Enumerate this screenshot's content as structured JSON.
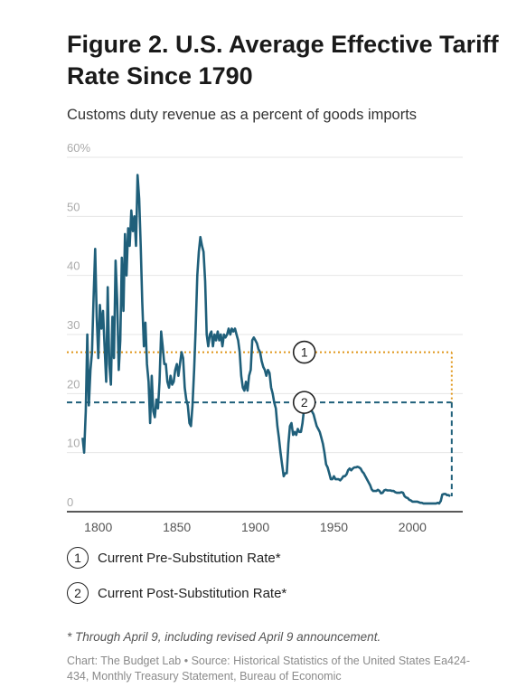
{
  "chart_data": {
    "type": "line",
    "title": "Figure 2. U.S. Average Effective Tariff Rate Since 1790",
    "subtitle": "Customs duty revenue as a percent of goods imports",
    "xlabel": "",
    "ylabel": "",
    "xlim": [
      1780,
      2032
    ],
    "ylim": [
      0,
      60
    ],
    "x_ticks": [
      "1800",
      "1850",
      "1900",
      "1950",
      "2000"
    ],
    "y_ticks": [
      "60%",
      "50",
      "40",
      "30",
      "20",
      "10",
      "0"
    ],
    "grid": true,
    "series": [
      {
        "color": "#1f5f7a",
        "points": [
          [
            1790,
            12.5
          ],
          [
            1791,
            10.0
          ],
          [
            1792,
            17.0
          ],
          [
            1793,
            30.0
          ],
          [
            1794,
            18.0
          ],
          [
            1795,
            24.0
          ],
          [
            1796,
            27.0
          ],
          [
            1797,
            36.0
          ],
          [
            1798,
            44.5
          ],
          [
            1799,
            33.0
          ],
          [
            1800,
            26.0
          ],
          [
            1801,
            35.0
          ],
          [
            1802,
            31.0
          ],
          [
            1803,
            34.0
          ],
          [
            1804,
            28.0
          ],
          [
            1805,
            22.0
          ],
          [
            1806,
            38.0
          ],
          [
            1807,
            25.0
          ],
          [
            1808,
            21.5
          ],
          [
            1809,
            33.0
          ],
          [
            1810,
            26.0
          ],
          [
            1811,
            42.5
          ],
          [
            1812,
            36.0
          ],
          [
            1813,
            24.0
          ],
          [
            1814,
            29.0
          ],
          [
            1815,
            43.0
          ],
          [
            1816,
            34.0
          ],
          [
            1817,
            47.0
          ],
          [
            1818,
            40.0
          ],
          [
            1819,
            48.0
          ],
          [
            1820,
            45.0
          ],
          [
            1821,
            51.0
          ],
          [
            1822,
            47.5
          ],
          [
            1823,
            50.0
          ],
          [
            1824,
            45.0
          ],
          [
            1825,
            57.0
          ],
          [
            1826,
            53.0
          ],
          [
            1827,
            45.0
          ],
          [
            1828,
            35.5
          ],
          [
            1829,
            28.0
          ],
          [
            1830,
            32.0
          ],
          [
            1831,
            25.0
          ],
          [
            1832,
            22.0
          ],
          [
            1833,
            15.0
          ],
          [
            1834,
            23.0
          ],
          [
            1835,
            17.0
          ],
          [
            1836,
            16.0
          ],
          [
            1837,
            19.0
          ],
          [
            1838,
            17.5
          ],
          [
            1839,
            22.0
          ],
          [
            1840,
            30.5
          ],
          [
            1841,
            28.0
          ],
          [
            1842,
            25.0
          ],
          [
            1843,
            25.0
          ],
          [
            1844,
            22.0
          ],
          [
            1845,
            21.0
          ],
          [
            1846,
            23.0
          ],
          [
            1847,
            21.5
          ],
          [
            1848,
            22.0
          ],
          [
            1849,
            24.0
          ],
          [
            1850,
            25.0
          ],
          [
            1851,
            23.0
          ],
          [
            1852,
            25.0
          ],
          [
            1853,
            27.0
          ],
          [
            1854,
            26.0
          ],
          [
            1855,
            21.0
          ],
          [
            1856,
            19.0
          ],
          [
            1857,
            18.0
          ],
          [
            1858,
            15.0
          ],
          [
            1859,
            14.5
          ],
          [
            1860,
            18.0
          ],
          [
            1861,
            24.0
          ],
          [
            1862,
            31.0
          ],
          [
            1863,
            40.0
          ],
          [
            1864,
            44.0
          ],
          [
            1865,
            46.5
          ],
          [
            1866,
            45.0
          ],
          [
            1867,
            44.0
          ],
          [
            1868,
            39.0
          ],
          [
            1869,
            30.0
          ],
          [
            1870,
            28.0
          ],
          [
            1871,
            30.0
          ],
          [
            1872,
            30.5
          ],
          [
            1873,
            28.0
          ],
          [
            1874,
            30.0
          ],
          [
            1875,
            29.0
          ],
          [
            1876,
            30.5
          ],
          [
            1877,
            29.0
          ],
          [
            1878,
            30.0
          ],
          [
            1879,
            28.0
          ],
          [
            1880,
            30.0
          ],
          [
            1881,
            29.5
          ],
          [
            1882,
            30.0
          ],
          [
            1883,
            31.0
          ],
          [
            1884,
            30.0
          ],
          [
            1885,
            31.0
          ],
          [
            1886,
            30.5
          ],
          [
            1887,
            31.0
          ],
          [
            1888,
            30.0
          ],
          [
            1889,
            29.0
          ],
          [
            1890,
            27.0
          ],
          [
            1891,
            23.0
          ],
          [
            1892,
            21.0
          ],
          [
            1893,
            20.5
          ],
          [
            1894,
            22.0
          ],
          [
            1895,
            20.5
          ],
          [
            1896,
            23.0
          ],
          [
            1897,
            24.0
          ],
          [
            1898,
            29.0
          ],
          [
            1899,
            29.5
          ],
          [
            1900,
            29.0
          ],
          [
            1901,
            28.5
          ],
          [
            1902,
            27.5
          ],
          [
            1903,
            27.0
          ],
          [
            1904,
            25.5
          ],
          [
            1905,
            24.5
          ],
          [
            1906,
            24.0
          ],
          [
            1907,
            23.0
          ],
          [
            1908,
            24.0
          ],
          [
            1909,
            23.5
          ],
          [
            1910,
            21.0
          ],
          [
            1911,
            20.0
          ],
          [
            1912,
            18.5
          ],
          [
            1913,
            17.5
          ],
          [
            1914,
            14.5
          ],
          [
            1915,
            12.5
          ],
          [
            1916,
            10.0
          ],
          [
            1917,
            8.0
          ],
          [
            1918,
            6.0
          ],
          [
            1919,
            6.5
          ],
          [
            1920,
            6.5
          ],
          [
            1921,
            11.5
          ],
          [
            1922,
            14.5
          ],
          [
            1923,
            15.0
          ],
          [
            1924,
            13.0
          ],
          [
            1925,
            13.5
          ],
          [
            1926,
            13.0
          ],
          [
            1927,
            14.0
          ],
          [
            1928,
            13.5
          ],
          [
            1929,
            13.5
          ],
          [
            1930,
            15.0
          ],
          [
            1931,
            17.5
          ],
          [
            1932,
            19.5
          ],
          [
            1933,
            20.0
          ],
          [
            1934,
            19.0
          ],
          [
            1935,
            17.5
          ],
          [
            1936,
            17.0
          ],
          [
            1937,
            16.5
          ],
          [
            1938,
            15.5
          ],
          [
            1939,
            14.5
          ],
          [
            1940,
            14.0
          ],
          [
            1941,
            13.5
          ],
          [
            1942,
            12.5
          ],
          [
            1943,
            11.5
          ],
          [
            1944,
            10.0
          ],
          [
            1945,
            8.0
          ],
          [
            1946,
            7.5
          ],
          [
            1947,
            6.5
          ],
          [
            1948,
            5.5
          ],
          [
            1949,
            5.5
          ],
          [
            1950,
            6.0
          ],
          [
            1951,
            5.5
          ],
          [
            1952,
            5.5
          ],
          [
            1953,
            5.5
          ],
          [
            1954,
            5.3
          ],
          [
            1955,
            5.6
          ],
          [
            1956,
            6.0
          ],
          [
            1957,
            6.0
          ],
          [
            1958,
            6.3
          ],
          [
            1959,
            7.0
          ],
          [
            1960,
            7.3
          ],
          [
            1961,
            7.0
          ],
          [
            1962,
            7.3
          ],
          [
            1963,
            7.5
          ],
          [
            1964,
            7.5
          ],
          [
            1965,
            7.6
          ],
          [
            1966,
            7.5
          ],
          [
            1967,
            7.3
          ],
          [
            1968,
            6.8
          ],
          [
            1969,
            6.5
          ],
          [
            1970,
            6.0
          ],
          [
            1971,
            5.5
          ],
          [
            1972,
            5.0
          ],
          [
            1973,
            4.5
          ],
          [
            1974,
            3.8
          ],
          [
            1975,
            3.5
          ],
          [
            1976,
            3.5
          ],
          [
            1977,
            3.5
          ],
          [
            1978,
            3.7
          ],
          [
            1979,
            3.5
          ],
          [
            1980,
            3.1
          ],
          [
            1981,
            3.2
          ],
          [
            1982,
            3.6
          ],
          [
            1983,
            3.7
          ],
          [
            1984,
            3.6
          ],
          [
            1985,
            3.6
          ],
          [
            1986,
            3.6
          ],
          [
            1987,
            3.5
          ],
          [
            1988,
            3.5
          ],
          [
            1989,
            3.3
          ],
          [
            1990,
            3.2
          ],
          [
            1991,
            3.2
          ],
          [
            1992,
            3.2
          ],
          [
            1993,
            3.3
          ],
          [
            1994,
            3.2
          ],
          [
            1995,
            2.6
          ],
          [
            1996,
            2.4
          ],
          [
            1997,
            2.3
          ],
          [
            1998,
            2.0
          ],
          [
            1999,
            1.9
          ],
          [
            2000,
            1.7
          ],
          [
            2001,
            1.7
          ],
          [
            2002,
            1.7
          ],
          [
            2003,
            1.7
          ],
          [
            2004,
            1.6
          ],
          [
            2005,
            1.5
          ],
          [
            2006,
            1.5
          ],
          [
            2007,
            1.4
          ],
          [
            2008,
            1.4
          ],
          [
            2009,
            1.4
          ],
          [
            2010,
            1.4
          ],
          [
            2011,
            1.4
          ],
          [
            2012,
            1.4
          ],
          [
            2013,
            1.4
          ],
          [
            2014,
            1.4
          ],
          [
            2015,
            1.4
          ],
          [
            2016,
            1.5
          ],
          [
            2017,
            1.4
          ],
          [
            2018,
            1.8
          ],
          [
            2019,
            2.9
          ],
          [
            2020,
            3.0
          ],
          [
            2021,
            3.0
          ],
          [
            2022,
            2.8
          ],
          [
            2023,
            2.8
          ],
          [
            2024,
            2.6
          ]
        ]
      }
    ],
    "reference_lines": [
      {
        "marker": "1",
        "value": 27,
        "color": "#e0961a",
        "dash": "dotted"
      },
      {
        "marker": "2",
        "value": 18.5,
        "color": "#1f5f7a",
        "dash": "dashed"
      }
    ],
    "reference_end_year": 2025,
    "legend": [
      {
        "marker": "1",
        "label": "Current Pre-Substitution Rate*"
      },
      {
        "marker": "2",
        "label": "Current Post-Substitution Rate*"
      }
    ]
  },
  "note": "* Through April 9, including revised April 9 announcement.",
  "source": "Chart: The Budget Lab • Source: Historical Statistics of the United States Ea424-434, Monthly Treasury Statement, Bureau of Economic"
}
